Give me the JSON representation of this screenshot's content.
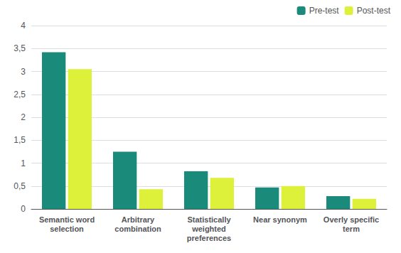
{
  "chart_data": {
    "type": "bar",
    "categories": [
      "Semantic word\nselection",
      "Arbitrary\ncombination",
      "Statistically\nweighted\npreferences",
      "Near synonym",
      "Overly specific\nterm"
    ],
    "series": [
      {
        "name": "Pre-test",
        "color": "#1a8a7a",
        "values": [
          3.42,
          1.25,
          0.82,
          0.47,
          0.28
        ]
      },
      {
        "name": "Post-test",
        "color": "#ddf03a",
        "values": [
          3.05,
          0.43,
          0.68,
          0.5,
          0.22
        ]
      }
    ],
    "ylim": [
      0,
      4
    ],
    "yticks": [
      0,
      {
        "value": 0.5,
        "label": "0,5"
      },
      1,
      {
        "value": 1.5,
        "label": "1,5"
      },
      2,
      {
        "value": 2.5,
        "label": "2,5"
      },
      3,
      {
        "value": 3.5,
        "label": "3,5"
      },
      4
    ],
    "grid": true,
    "legend": "upper right"
  }
}
